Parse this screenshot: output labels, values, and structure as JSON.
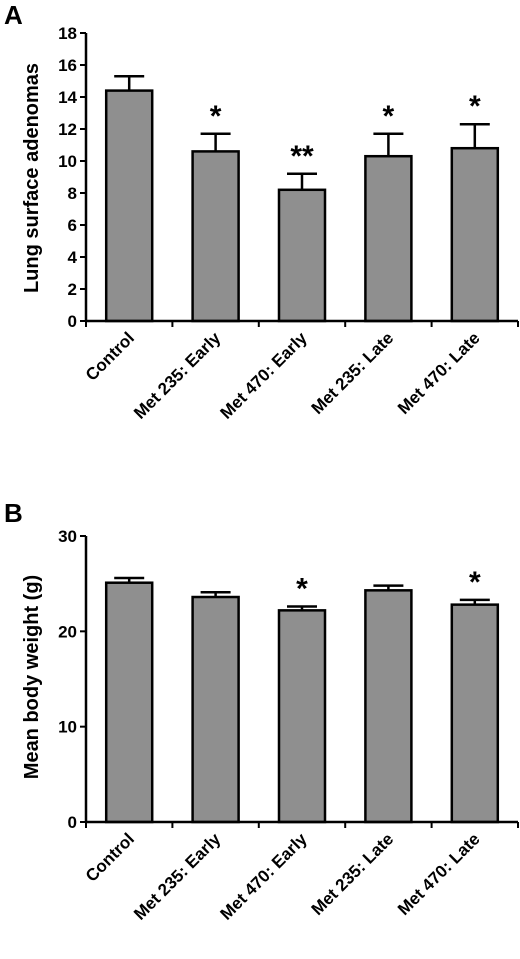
{
  "chart_data": [
    {
      "type": "bar",
      "panel_label": "A",
      "ylabel": "Lung surface adenomas",
      "xlabel": "",
      "title": "",
      "categories": [
        "Control",
        "Met 235: Early",
        "Met 470: Early",
        "Met 235: Late",
        "Met 470: Late"
      ],
      "values": [
        14.4,
        10.6,
        8.2,
        10.3,
        10.8
      ],
      "errors": [
        0.9,
        1.1,
        1.0,
        1.4,
        1.5
      ],
      "significance": [
        "",
        "*",
        "**",
        "*",
        "*"
      ],
      "ylim": [
        0,
        18
      ],
      "yticks": [
        0,
        2,
        4,
        6,
        8,
        10,
        12,
        14,
        16,
        18
      ],
      "bar_color": "#8f8f8f",
      "grid": false
    },
    {
      "type": "bar",
      "panel_label": "B",
      "ylabel": "Mean body weight (g)",
      "xlabel": "",
      "title": "",
      "categories": [
        "Control",
        "Met 235: Early",
        "Met 470: Early",
        "Met 235: Late",
        "Met 470: Late"
      ],
      "values": [
        25.1,
        23.6,
        22.2,
        24.3,
        22.8
      ],
      "errors": [
        0.5,
        0.5,
        0.4,
        0.5,
        0.5
      ],
      "significance": [
        "",
        "",
        "*",
        "",
        "*"
      ],
      "ylim": [
        0,
        30
      ],
      "yticks": [
        0,
        10,
        20,
        30
      ],
      "bar_color": "#8f8f8f",
      "grid": false
    }
  ]
}
